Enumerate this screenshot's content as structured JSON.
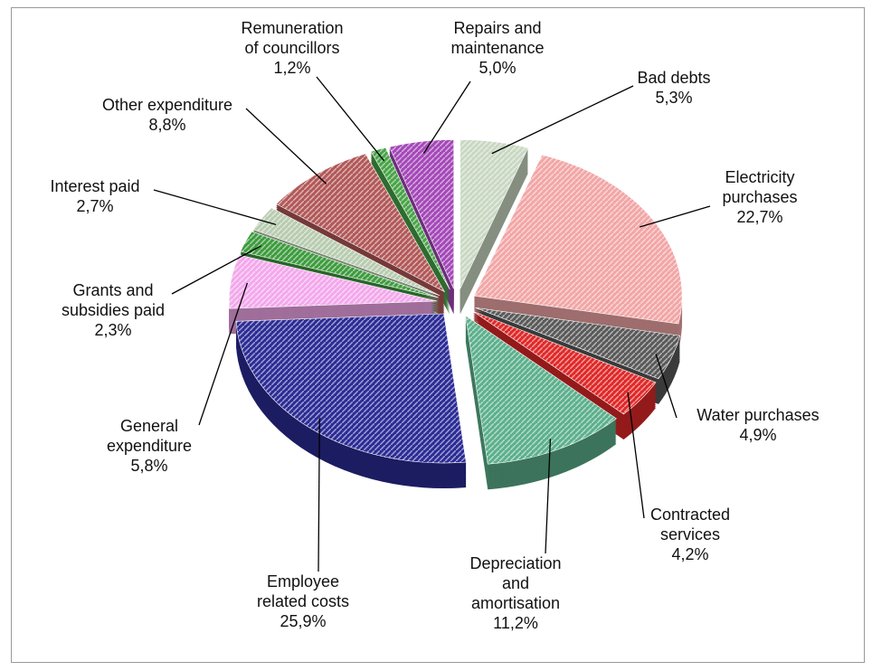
{
  "chart_data": {
    "type": "pie",
    "categories": [
      "Bad debts",
      "Electricity purchases",
      "Water purchases",
      "Contracted services",
      "Depreciation and amortisation",
      "Employee related costs",
      "General expenditure",
      "Grants and subsidies paid",
      "Interest paid",
      "Other expenditure",
      "Remuneration of councillors",
      "Repairs and maintenance"
    ],
    "values": [
      5.3,
      22.7,
      4.9,
      4.2,
      11.2,
      25.9,
      5.8,
      2.3,
      2.7,
      8.8,
      1.2,
      5.0
    ],
    "value_labels": [
      "5,3%",
      "22,7%",
      "4,9%",
      "4,2%",
      "11,2%",
      "25,9%",
      "5,8%",
      "2,3%",
      "2,7%",
      "8,8%",
      "1,2%",
      "5,0%"
    ],
    "colors": [
      "#c9d8c2",
      "#f2a6a6",
      "#5a5a5a",
      "#e02828",
      "#5cb08c",
      "#2c2c96",
      "#f3a8ec",
      "#3e9c3e",
      "#b8ccb0",
      "#b25858",
      "#48a448",
      "#a448b8"
    ]
  }
}
